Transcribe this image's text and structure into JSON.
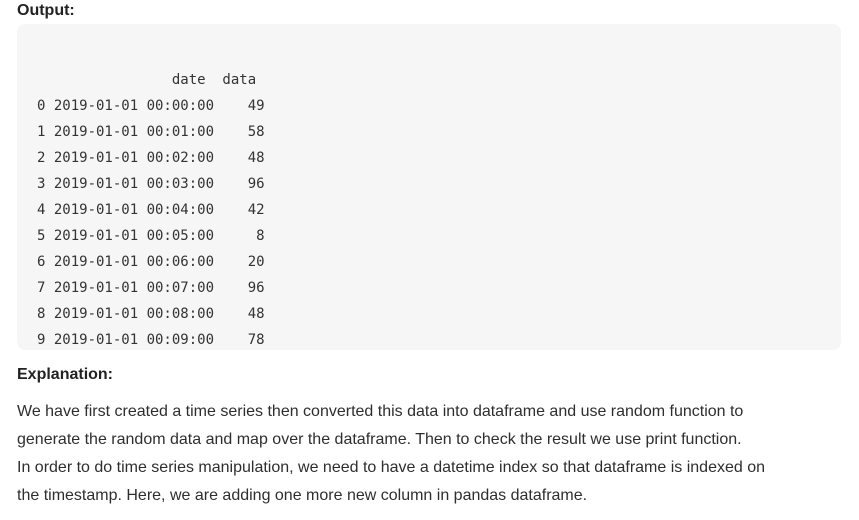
{
  "output_heading": "Output:",
  "explanation_heading": "Explanation:",
  "code": {
    "header": "                date  data",
    "rows": [
      "0 2019-01-01 00:00:00    49",
      "1 2019-01-01 00:01:00    58",
      "2 2019-01-01 00:02:00    48",
      "3 2019-01-01 00:03:00    96",
      "4 2019-01-01 00:04:00    42",
      "5 2019-01-01 00:05:00     8",
      "6 2019-01-01 00:06:00    20",
      "7 2019-01-01 00:07:00    96",
      "8 2019-01-01 00:08:00    48",
      "9 2019-01-01 00:09:00    78"
    ]
  },
  "explanation": {
    "lines": [
      "We have first created a time series then converted this data into dataframe and use random function to",
      "generate the random data and map over the dataframe. Then to check the result we use print function.",
      "In order to do time series manipulation, we need to have a datetime index so that dataframe is indexed on",
      "the timestamp. Here, we are adding one more new column in pandas dataframe."
    ]
  }
}
